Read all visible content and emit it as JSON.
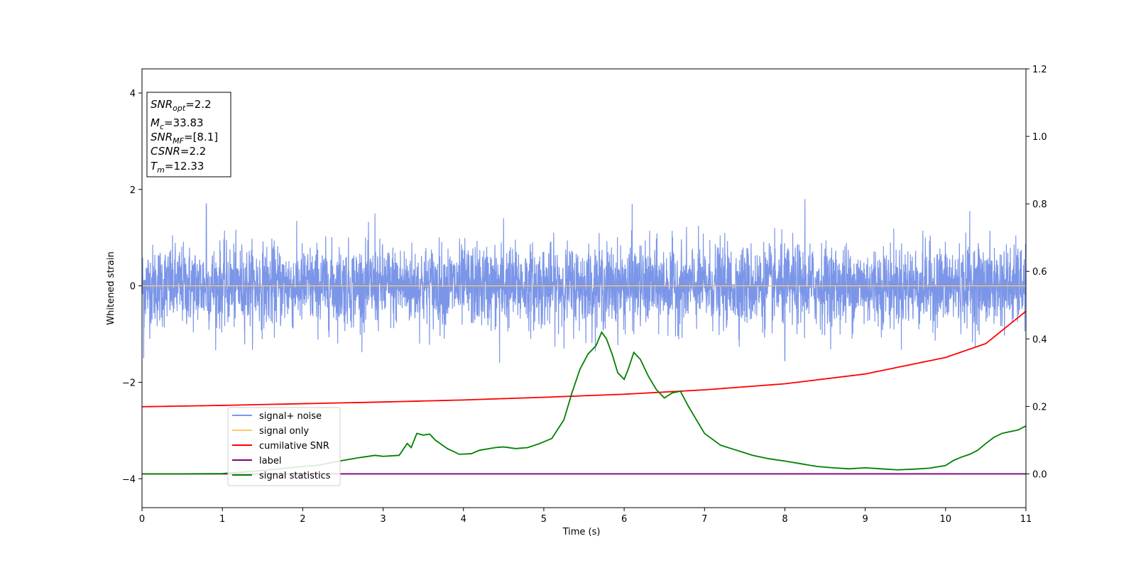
{
  "chart_data": {
    "type": "line",
    "xlabel": "Time (s)",
    "ylabel": "Whitened strain",
    "xlim": [
      0,
      11
    ],
    "ylim_left": [
      -4.6,
      4.5
    ],
    "ylim_right": [
      -0.1,
      1.2
    ],
    "x_ticks": [
      0,
      1,
      2,
      3,
      4,
      5,
      6,
      7,
      8,
      9,
      10,
      11
    ],
    "y_ticks_left": [
      -4,
      -2,
      0,
      2,
      4
    ],
    "y_ticks_left_labels": [
      "−4",
      "−2",
      "0",
      "2",
      "4"
    ],
    "y_ticks_right": [
      0.0,
      0.2,
      0.4,
      0.6,
      0.8,
      1.0,
      1.2
    ],
    "y_ticks_right_labels": [
      "0.0",
      "0.2",
      "0.4",
      "0.6",
      "0.8",
      "1.0",
      "1.2"
    ],
    "grid": false,
    "legend_placement": "lower-left",
    "info_box": {
      "snr_opt": {
        "sym": "SNR",
        "sub": "opt",
        "val": "=2.2"
      },
      "mc": {
        "sym": "M",
        "sub": "c",
        "val": "=33.83"
      },
      "snr_mf": {
        "sym": "SNR",
        "sub": "MF",
        "val": "=[8.1]"
      },
      "csnr": {
        "sym": "CSNR",
        "sub": "",
        "val": "=2.2"
      },
      "tm": {
        "sym": "T",
        "sub": "m",
        "val": "=12.33"
      }
    },
    "series": [
      {
        "name": "signal+ noise",
        "axis": "left",
        "color": "#7b96e8",
        "noise_amplitude_std": 0.42,
        "peaks": [
          [
            0.8,
            1.7
          ],
          [
            2.9,
            1.5
          ],
          [
            4.5,
            1.4
          ],
          [
            6.1,
            1.7
          ],
          [
            8.25,
            1.8
          ],
          [
            10.3,
            1.55
          ],
          [
            4.45,
            -1.6
          ],
          [
            8.0,
            -1.55
          ],
          [
            0.02,
            -1.5
          ]
        ]
      },
      {
        "name": "signal only",
        "axis": "left",
        "color": "#ffc966",
        "x": [
          0,
          11
        ],
        "y": [
          0,
          0
        ]
      },
      {
        "name": "cumilative SNR",
        "axis": "right",
        "color": "#ff0000",
        "x": [
          0,
          1,
          2,
          3,
          4,
          5,
          6,
          7,
          8,
          9,
          10,
          10.5,
          11
        ],
        "y": [
          0.199,
          0.203,
          0.208,
          0.213,
          0.219,
          0.227,
          0.236,
          0.249,
          0.267,
          0.296,
          0.345,
          0.386,
          0.482
        ]
      },
      {
        "name": "label",
        "axis": "right",
        "color": "#800080",
        "x": [
          0,
          11
        ],
        "y": [
          0,
          0
        ]
      },
      {
        "name": "signal statistics",
        "axis": "right",
        "color": "#008000",
        "x": [
          0,
          0.5,
          1,
          1.5,
          2,
          2.2,
          2.5,
          2.7,
          2.9,
          3.0,
          3.2,
          3.3,
          3.35,
          3.42,
          3.5,
          3.58,
          3.65,
          3.8,
          3.95,
          4.1,
          4.2,
          4.3,
          4.4,
          4.5,
          4.65,
          4.8,
          4.95,
          5.1,
          5.25,
          5.35,
          5.45,
          5.55,
          5.65,
          5.72,
          5.78,
          5.85,
          5.92,
          6.0,
          6.05,
          6.12,
          6.2,
          6.3,
          6.4,
          6.5,
          6.6,
          6.7,
          6.8,
          6.9,
          7.0,
          7.2,
          7.4,
          7.6,
          7.8,
          8.0,
          8.2,
          8.4,
          8.6,
          8.8,
          9.0,
          9.2,
          9.4,
          9.6,
          9.8,
          10.0,
          10.1,
          10.2,
          10.3,
          10.4,
          10.5,
          10.6,
          10.7,
          10.8,
          10.9,
          11
        ],
        "y": [
          0.0,
          0.0,
          0.001,
          0.01,
          0.022,
          0.026,
          0.04,
          0.048,
          0.055,
          0.052,
          0.055,
          0.09,
          0.078,
          0.12,
          0.115,
          0.118,
          0.1,
          0.075,
          0.058,
          0.06,
          0.07,
          0.074,
          0.078,
          0.08,
          0.075,
          0.078,
          0.09,
          0.105,
          0.16,
          0.24,
          0.31,
          0.355,
          0.38,
          0.42,
          0.4,
          0.355,
          0.3,
          0.28,
          0.31,
          0.36,
          0.34,
          0.29,
          0.25,
          0.225,
          0.24,
          0.245,
          0.2,
          0.16,
          0.12,
          0.085,
          0.07,
          0.055,
          0.045,
          0.038,
          0.03,
          0.022,
          0.018,
          0.015,
          0.018,
          0.015,
          0.012,
          0.014,
          0.017,
          0.025,
          0.04,
          0.05,
          0.058,
          0.07,
          0.09,
          0.108,
          0.12,
          0.125,
          0.13,
          0.142
        ]
      }
    ]
  }
}
